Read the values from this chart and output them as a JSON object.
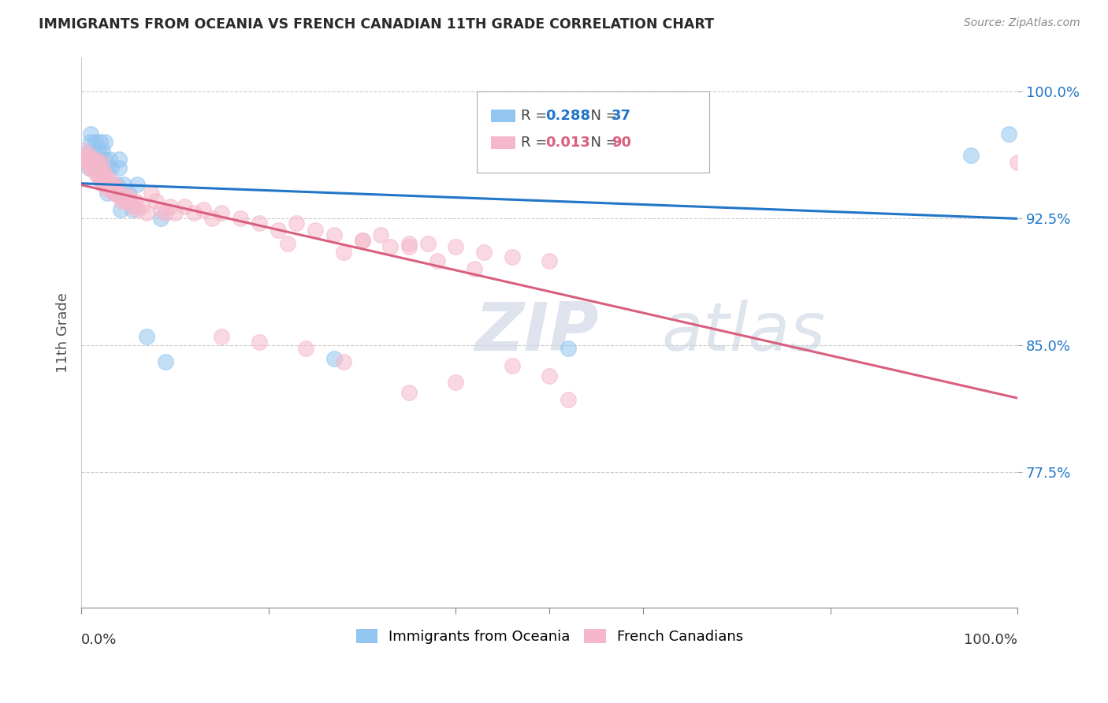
{
  "title": "IMMIGRANTS FROM OCEANIA VS FRENCH CANADIAN 11TH GRADE CORRELATION CHART",
  "source": "Source: ZipAtlas.com",
  "ylabel": "11th Grade",
  "y_tick_labels": [
    "77.5%",
    "85.0%",
    "92.5%",
    "100.0%"
  ],
  "y_tick_values": [
    0.775,
    0.85,
    0.925,
    1.0
  ],
  "x_range": [
    0.0,
    1.0
  ],
  "y_range": [
    0.695,
    1.02
  ],
  "legend_label_blue": "Immigrants from Oceania",
  "legend_label_pink": "French Canadians",
  "blue_color": "#92c5f0",
  "pink_color": "#f5b8cb",
  "trend_blue": "#2176c7",
  "trend_pink": "#d95f7f",
  "r_blue": "0.288",
  "n_blue": "37",
  "r_pink": "0.013",
  "n_pink": "90",
  "watermark_zip": "ZIP",
  "watermark_atlas": "atlas",
  "background_color": "#ffffff",
  "blue_scatter_x": [
    0.005,
    0.008,
    0.01,
    0.01,
    0.012,
    0.013,
    0.015,
    0.015,
    0.017,
    0.018,
    0.02,
    0.02,
    0.022,
    0.023,
    0.025,
    0.025,
    0.028,
    0.028,
    0.03,
    0.03,
    0.032,
    0.035,
    0.038,
    0.04,
    0.04,
    0.042,
    0.045,
    0.05,
    0.055,
    0.06,
    0.07,
    0.085,
    0.09,
    0.27,
    0.52,
    0.95,
    0.99
  ],
  "blue_scatter_y": [
    0.963,
    0.955,
    0.97,
    0.975,
    0.965,
    0.958,
    0.97,
    0.96,
    0.955,
    0.965,
    0.97,
    0.96,
    0.955,
    0.965,
    0.96,
    0.97,
    0.955,
    0.94,
    0.945,
    0.96,
    0.955,
    0.94,
    0.945,
    0.955,
    0.96,
    0.93,
    0.945,
    0.94,
    0.93,
    0.945,
    0.855,
    0.925,
    0.84,
    0.842,
    0.848,
    0.962,
    0.975
  ],
  "pink_scatter_x": [
    0.003,
    0.005,
    0.006,
    0.007,
    0.008,
    0.009,
    0.01,
    0.01,
    0.011,
    0.012,
    0.013,
    0.014,
    0.015,
    0.015,
    0.016,
    0.017,
    0.018,
    0.018,
    0.019,
    0.02,
    0.021,
    0.022,
    0.022,
    0.023,
    0.024,
    0.025,
    0.026,
    0.027,
    0.028,
    0.03,
    0.031,
    0.032,
    0.034,
    0.035,
    0.037,
    0.038,
    0.04,
    0.041,
    0.043,
    0.045,
    0.047,
    0.05,
    0.052,
    0.055,
    0.058,
    0.06,
    0.065,
    0.07,
    0.075,
    0.08,
    0.085,
    0.09,
    0.095,
    0.1,
    0.11,
    0.12,
    0.13,
    0.14,
    0.15,
    0.17,
    0.19,
    0.21,
    0.23,
    0.25,
    0.27,
    0.3,
    0.32,
    0.35,
    0.37,
    0.4,
    0.43,
    0.46,
    0.5,
    0.22,
    0.28,
    0.33,
    0.38,
    0.42,
    0.3,
    0.35,
    0.15,
    0.19,
    0.24,
    0.28,
    0.46,
    0.5,
    0.4,
    0.35,
    0.52,
    1.0
  ],
  "pink_scatter_y": [
    0.965,
    0.962,
    0.96,
    0.958,
    0.962,
    0.955,
    0.96,
    0.958,
    0.956,
    0.955,
    0.958,
    0.955,
    0.952,
    0.96,
    0.955,
    0.958,
    0.95,
    0.955,
    0.948,
    0.955,
    0.952,
    0.948,
    0.958,
    0.945,
    0.952,
    0.95,
    0.948,
    0.945,
    0.942,
    0.948,
    0.945,
    0.942,
    0.94,
    0.945,
    0.94,
    0.942,
    0.94,
    0.938,
    0.935,
    0.938,
    0.935,
    0.938,
    0.935,
    0.932,
    0.935,
    0.93,
    0.932,
    0.928,
    0.94,
    0.935,
    0.93,
    0.928,
    0.932,
    0.928,
    0.932,
    0.928,
    0.93,
    0.925,
    0.928,
    0.925,
    0.922,
    0.918,
    0.922,
    0.918,
    0.915,
    0.912,
    0.915,
    0.91,
    0.91,
    0.908,
    0.905,
    0.902,
    0.9,
    0.91,
    0.905,
    0.908,
    0.9,
    0.895,
    0.912,
    0.908,
    0.855,
    0.852,
    0.848,
    0.84,
    0.838,
    0.832,
    0.828,
    0.822,
    0.818,
    0.958
  ]
}
